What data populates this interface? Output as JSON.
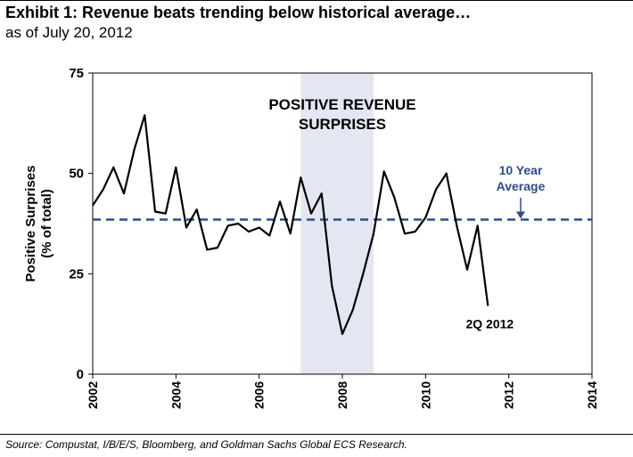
{
  "header": {
    "title": "Exhibit 1: Revenue beats trending below historical average…",
    "subtitle": "as of July 20, 2012"
  },
  "footer": {
    "source": "Source: Compustat, I/B/E/S, Bloomberg, and Goldman Sachs Global ECS Research."
  },
  "chart_data": {
    "type": "line",
    "title": "",
    "ylabel_line1": "Positive Surprises",
    "ylabel_line2": "(% of total)",
    "xlabel": "",
    "xlim": [
      2002,
      2014
    ],
    "ylim": [
      0,
      75
    ],
    "yticks": [
      "0",
      "25",
      "50",
      "75"
    ],
    "xticks": [
      "2002",
      "2004",
      "2006",
      "2008",
      "2010",
      "2012",
      "2014"
    ],
    "grid": false,
    "legend": "none",
    "line_color": "#000000",
    "average": {
      "value": 38.5,
      "line1": "10 Year",
      "line2": "Average",
      "color": "#2e4d8c"
    },
    "band": {
      "start": 2007.0,
      "end": 2008.75,
      "label_line1": "POSITIVE REVENUE",
      "label_line2": "SURPRISES",
      "color": "#e3e7f2"
    },
    "end_label": "2Q 2012",
    "x": [
      2002.0,
      2002.25,
      2002.5,
      2002.75,
      2003.0,
      2003.25,
      2003.5,
      2003.75,
      2004.0,
      2004.25,
      2004.5,
      2004.75,
      2005.0,
      2005.25,
      2005.5,
      2005.75,
      2006.0,
      2006.25,
      2006.5,
      2006.75,
      2007.0,
      2007.25,
      2007.5,
      2007.75,
      2008.0,
      2008.25,
      2008.5,
      2008.75,
      2009.0,
      2009.25,
      2009.5,
      2009.75,
      2010.0,
      2010.25,
      2010.5,
      2010.75,
      2011.0,
      2011.25,
      2011.5
    ],
    "y": [
      42,
      46,
      51.5,
      45,
      56,
      64.5,
      40.5,
      40,
      51.5,
      36.5,
      41,
      31,
      31.5,
      37,
      37.5,
      35.5,
      36.5,
      34.5,
      43,
      35,
      49,
      40,
      45,
      22,
      10,
      16,
      25,
      35,
      50.5,
      44,
      35,
      35.5,
      39,
      46,
      50,
      37,
      26,
      37,
      17
    ]
  }
}
